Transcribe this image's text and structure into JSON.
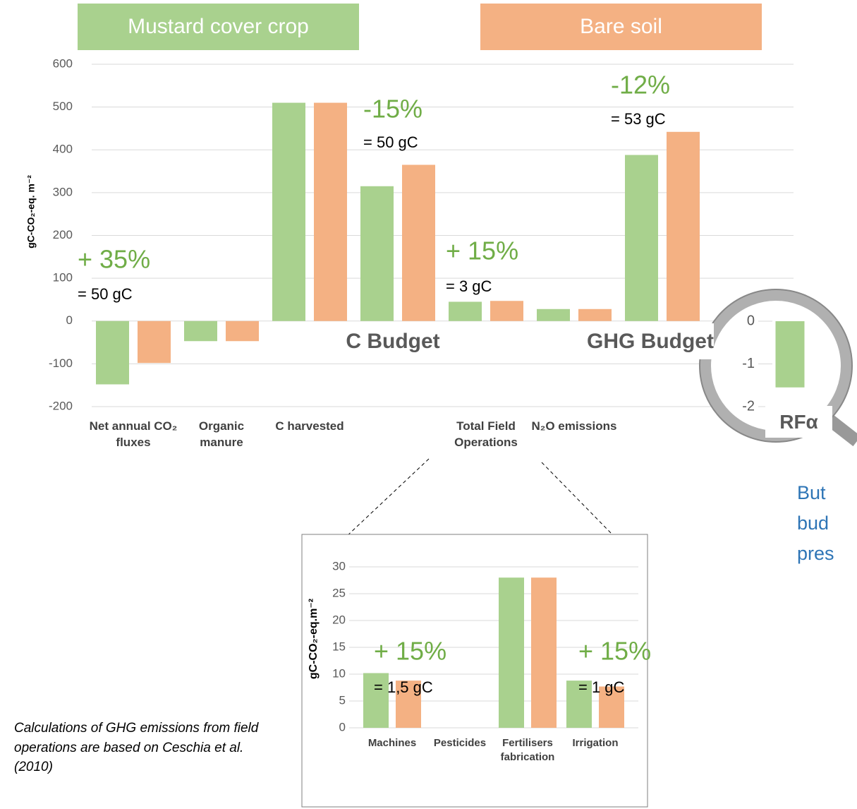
{
  "chart_data": [
    {
      "type": "bar",
      "y_label": "gC-CO₂-eq. m⁻²",
      "categories": [
        "Net annual CO₂ fluxes",
        "Organic manure",
        "C harvested",
        null,
        "Total Field Operations",
        "N₂O emissions",
        null
      ],
      "series": [
        {
          "name": "Mustard cover crop",
          "color": "#a9d18e",
          "values": [
            -148,
            -47,
            510,
            315,
            45,
            28,
            388
          ]
        },
        {
          "name": "Bare soil",
          "color": "#f4b183",
          "values": [
            -98,
            -47,
            510,
            365,
            47,
            28,
            442
          ]
        }
      ],
      "ylim": [
        -200,
        600
      ],
      "yticks": [
        -200,
        -100,
        0,
        100,
        200,
        300,
        400,
        500,
        600
      ],
      "grid": true,
      "annotations": [
        "+ 35%",
        "= 50 gC",
        "-15%",
        "= 50 gC",
        "+ 15%",
        "= 3 gC",
        "-12%",
        "= 53 gC"
      ],
      "budget_labels": [
        "C Budget",
        "GHG Budget"
      ]
    },
    {
      "type": "bar",
      "y_label": "gC-CO₂-eq.m⁻²",
      "categories": [
        "Machines",
        "Pesticides",
        "Fertilisers fabrication",
        "Irrigation"
      ],
      "series": [
        {
          "color": "#a9d18e",
          "values": [
            10.2,
            0,
            28,
            8.8
          ]
        },
        {
          "color": "#f4b183",
          "values": [
            8.8,
            0,
            28,
            7.7
          ]
        }
      ],
      "ylim": [
        0,
        30
      ],
      "yticks": [
        0,
        5,
        10,
        15,
        20,
        25,
        30
      ],
      "grid": true,
      "annotations": [
        "+ 15%",
        "= 1,5 gC",
        "+ 15%",
        "= 1 gC"
      ]
    },
    {
      "type": "bar",
      "categories": [
        "RFα"
      ],
      "series": [
        {
          "color": "#a9d18e",
          "values": [
            -1.55
          ]
        }
      ],
      "ylim": [
        -2,
        0
      ],
      "yticks": [
        -2,
        -1,
        0
      ],
      "grid": false
    }
  ],
  "footnote": "Calculations of GHG emissions from field operations are based on Ceschia et al. (2010)",
  "side_text": [
    "But",
    "bud",
    "pres"
  ]
}
